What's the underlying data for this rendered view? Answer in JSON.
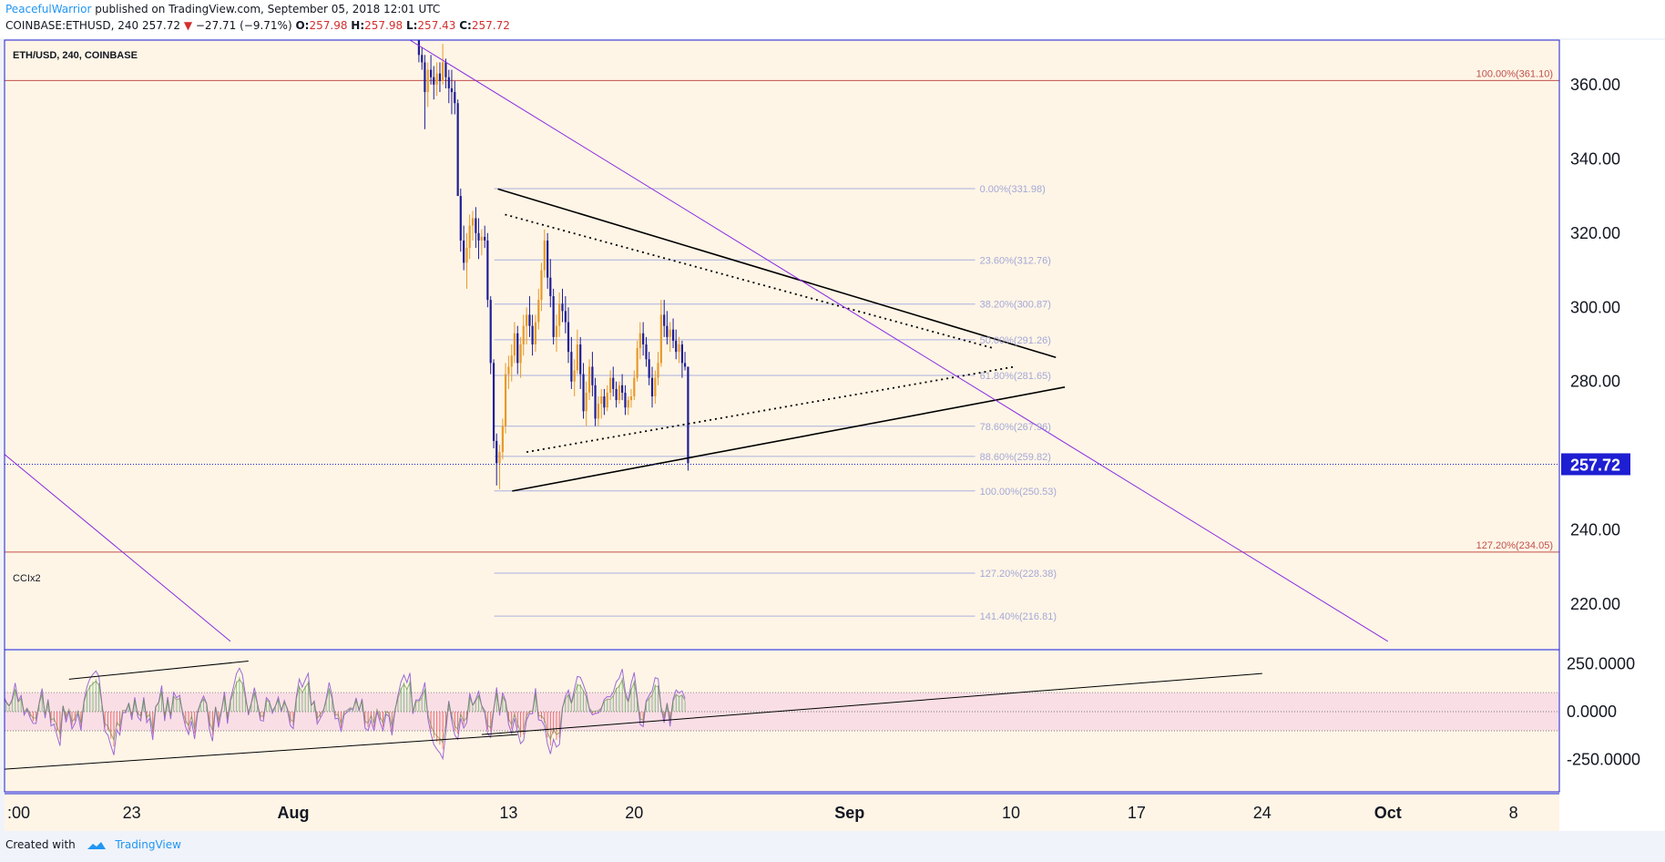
{
  "header": {
    "author": "PeacefulWarrior",
    "published": "published on TradingView.com, September 05, 2018 12:01 UTC",
    "symbol": "COINBASE:ETHUSD,",
    "timeframe": "240",
    "last": "257.72",
    "change": "−27.71 (−9.71%)",
    "o_label": "O:",
    "o": "257.98",
    "h_label": "H:",
    "h": "257.98",
    "l_label": "L:",
    "l": "257.43",
    "c_label": "C:",
    "c": "257.72"
  },
  "footer": {
    "created": "Created with",
    "brand": "TradingView"
  },
  "chart_data": {
    "type": "candlestick",
    "title": "ETH/USD, 240, COINBASE",
    "ylim": [
      208,
      372
    ],
    "y_ticks": [
      220,
      240,
      260,
      280,
      300,
      320,
      340,
      360
    ],
    "y_tick_labels": [
      "220.00",
      "240.00",
      "",
      "280.00",
      "300.00",
      "320.00",
      "340.00",
      "360.00"
    ],
    "x_ticks": [
      {
        "label": ":00",
        "day": -26,
        "bold": false
      },
      {
        "label": "23",
        "day": -9,
        "bold": false
      },
      {
        "label": "Aug",
        "day": 0,
        "bold": true
      },
      {
        "label": "13",
        "day": 12,
        "bold": false
      },
      {
        "label": "20",
        "day": 19,
        "bold": false
      },
      {
        "label": "Sep",
        "day": 31,
        "bold": true
      },
      {
        "label": "10",
        "day": 40,
        "bold": false
      },
      {
        "label": "17",
        "day": 47,
        "bold": false
      },
      {
        "label": "24",
        "day": 54,
        "bold": false
      },
      {
        "label": "Oct",
        "day": 61,
        "bold": true
      },
      {
        "label": "8",
        "day": 68,
        "bold": false
      }
    ],
    "last_price": {
      "value": 257.72,
      "label": "257.72",
      "color": "#1e1ed2"
    },
    "colors": {
      "up": "#e69a2a",
      "down": "#1e1e96",
      "background": "#fff5e6",
      "fib_line": "#aab0e0",
      "fib_text": "#a4a8d8",
      "major_fib": "#c0504d",
      "channel": "#8a2be2",
      "cci": "#9c6ad6",
      "cci_band": "#f5d0e4"
    },
    "fib_retracement": [
      {
        "label": "0.00%(331.98)",
        "value": 331.98
      },
      {
        "label": "23.60%(312.76)",
        "value": 312.76
      },
      {
        "label": "38.20%(300.87)",
        "value": 300.87
      },
      {
        "label": "50.00%(291.26)",
        "value": 291.26
      },
      {
        "label": "61.80%(281.65)",
        "value": 281.65
      },
      {
        "label": "78.60%(267.96)",
        "value": 267.96
      },
      {
        "label": "88.60%(259.82)",
        "value": 259.82
      },
      {
        "label": "100.00%(250.53)",
        "value": 250.53
      },
      {
        "label": "127.20%(228.38)",
        "value": 228.38
      },
      {
        "label": "141.40%(216.81)",
        "value": 216.81
      }
    ],
    "major_fib": [
      {
        "label": "100.00%(361.10)",
        "value": 361.1
      },
      {
        "label": "127.20%(234.05)",
        "value": 234.05
      }
    ],
    "trendlines": [
      {
        "from": [
          11.4,
          331.9
        ],
        "to": [
          42.5,
          286.5
        ],
        "style": "solid",
        "color": "#000000"
      },
      {
        "from": [
          12.2,
          250.5
        ],
        "to": [
          43.0,
          278.5
        ],
        "style": "solid",
        "color": "#000000"
      },
      {
        "from": [
          11.8,
          325.0
        ],
        "to": [
          39.0,
          289.0
        ],
        "style": "dotted",
        "color": "#000000"
      },
      {
        "from": [
          13.0,
          261.0
        ],
        "to": [
          40.2,
          284.0
        ],
        "style": "dotted",
        "color": "#000000"
      },
      {
        "from": [
          -27.5,
          306.0
        ],
        "to": [
          -3.5,
          210.0
        ],
        "style": "solid",
        "color": "#8a2be2"
      },
      {
        "from": [
          6.5,
          372.0
        ],
        "to": [
          61.0,
          210.0
        ],
        "style": "solid",
        "color": "#8a2be2"
      }
    ],
    "candles": [
      [
        7.0,
        372,
        372,
        366,
        368
      ],
      [
        7.17,
        368,
        370,
        364,
        366
      ],
      [
        7.33,
        366,
        368,
        348,
        358
      ],
      [
        7.5,
        358,
        366,
        354,
        364
      ],
      [
        7.67,
        364,
        368,
        360,
        362
      ],
      [
        7.83,
        362,
        365,
        356,
        360
      ],
      [
        8.0,
        360,
        366,
        357,
        363
      ],
      [
        8.17,
        363,
        366,
        358,
        361
      ],
      [
        8.33,
        361,
        371,
        360,
        366
      ],
      [
        8.5,
        366,
        367,
        359,
        362
      ],
      [
        8.67,
        362,
        364,
        355,
        359
      ],
      [
        8.83,
        359,
        364,
        352,
        358
      ],
      [
        9.0,
        358,
        361,
        352,
        355
      ],
      [
        9.17,
        355,
        356,
        330,
        330
      ],
      [
        9.33,
        330,
        332,
        315,
        318
      ],
      [
        9.5,
        318,
        322,
        310,
        312
      ],
      [
        9.67,
        312,
        320,
        305,
        316
      ],
      [
        9.83,
        316,
        325,
        313,
        322
      ],
      [
        10.0,
        322,
        326,
        318,
        324
      ],
      [
        10.17,
        324,
        327,
        316,
        320
      ],
      [
        10.33,
        320,
        324,
        313,
        318
      ],
      [
        10.5,
        318,
        321,
        314,
        319
      ],
      [
        10.67,
        319,
        322,
        316,
        318
      ],
      [
        10.83,
        318,
        320,
        300,
        302
      ],
      [
        11.0,
        302,
        303,
        282,
        285
      ],
      [
        11.17,
        285,
        286,
        262,
        264
      ],
      [
        11.33,
        264,
        266,
        252,
        258
      ],
      [
        11.5,
        258,
        263,
        251,
        261
      ],
      [
        11.67,
        261,
        270,
        259,
        268
      ],
      [
        11.83,
        268,
        285,
        266,
        282
      ],
      [
        12.0,
        282,
        287,
        278,
        284
      ],
      [
        12.17,
        284,
        290,
        280,
        287
      ],
      [
        12.33,
        287,
        296,
        285,
        293
      ],
      [
        12.5,
        293,
        295,
        282,
        285
      ],
      [
        12.67,
        285,
        292,
        281,
        290
      ],
      [
        12.83,
        290,
        298,
        287,
        295
      ],
      [
        13.0,
        295,
        300,
        290,
        298
      ],
      [
        13.17,
        298,
        303,
        292,
        295
      ],
      [
        13.33,
        295,
        298,
        287,
        290
      ],
      [
        13.5,
        290,
        298,
        288,
        296
      ],
      [
        13.67,
        296,
        305,
        294,
        302
      ],
      [
        13.83,
        302,
        312,
        299,
        310
      ],
      [
        14.0,
        310,
        321,
        308,
        318
      ],
      [
        14.17,
        318,
        320,
        305,
        308
      ],
      [
        14.33,
        308,
        313,
        300,
        303
      ],
      [
        14.5,
        303,
        305,
        290,
        292
      ],
      [
        14.67,
        292,
        298,
        288,
        295
      ],
      [
        14.83,
        295,
        304,
        292,
        301
      ],
      [
        15.0,
        301,
        305,
        296,
        299
      ],
      [
        15.17,
        299,
        303,
        293,
        296
      ],
      [
        15.33,
        296,
        300,
        285,
        288
      ],
      [
        15.5,
        288,
        292,
        278,
        280
      ],
      [
        15.67,
        280,
        286,
        276,
        283
      ],
      [
        15.83,
        283,
        294,
        282,
        290
      ],
      [
        16.0,
        290,
        292,
        278,
        282
      ],
      [
        16.17,
        282,
        285,
        270,
        272
      ],
      [
        16.33,
        272,
        280,
        268,
        277
      ],
      [
        16.5,
        277,
        286,
        275,
        284
      ],
      [
        16.67,
        284,
        288,
        276,
        279
      ],
      [
        16.83,
        279,
        281,
        268,
        270
      ],
      [
        17.0,
        270,
        276,
        268,
        274
      ],
      [
        17.17,
        274,
        278,
        270,
        276
      ],
      [
        17.33,
        276,
        278,
        271,
        273
      ],
      [
        17.5,
        273,
        279,
        272,
        277
      ],
      [
        17.67,
        277,
        283,
        275,
        281
      ],
      [
        17.83,
        281,
        284,
        276,
        278
      ],
      [
        18.0,
        278,
        280,
        273,
        275
      ],
      [
        18.17,
        275,
        280,
        274,
        279
      ],
      [
        18.33,
        279,
        282,
        275,
        277
      ],
      [
        18.5,
        277,
        279,
        271,
        273
      ],
      [
        18.67,
        273,
        276,
        271,
        275
      ],
      [
        18.83,
        275,
        278,
        273,
        276
      ],
      [
        19.0,
        276,
        283,
        275,
        281
      ],
      [
        19.17,
        281,
        291,
        280,
        289
      ],
      [
        19.33,
        289,
        296,
        286,
        293
      ],
      [
        19.5,
        293,
        296,
        287,
        290
      ],
      [
        19.67,
        290,
        292,
        284,
        286
      ],
      [
        19.83,
        286,
        288,
        279,
        281
      ],
      [
        20.0,
        281,
        284,
        273,
        276
      ],
      [
        20.17,
        276,
        283,
        274,
        281
      ],
      [
        20.33,
        281,
        288,
        279,
        285
      ],
      [
        20.5,
        285,
        302,
        284,
        298
      ],
      [
        20.67,
        298,
        302,
        292,
        295
      ],
      [
        20.83,
        295,
        299,
        290,
        292
      ],
      [
        21.0,
        292,
        296,
        288,
        294
      ],
      [
        21.17,
        294,
        297,
        289,
        291
      ],
      [
        21.33,
        291,
        294,
        286,
        288
      ],
      [
        21.5,
        288,
        292,
        285,
        290
      ],
      [
        21.67,
        290,
        291,
        281,
        285
      ],
      [
        21.83,
        285,
        288,
        283,
        284
      ],
      [
        22.0,
        284,
        284,
        256,
        258
      ]
    ],
    "cci": {
      "label": "CCIx2",
      "ylim": [
        -420,
        320
      ],
      "y_ticks": [
        250,
        0,
        -250
      ],
      "y_tick_labels": [
        "250.0000",
        "0.0000",
        "-250.0000"
      ],
      "band": [
        100,
        -100
      ],
      "trendlines": [
        {
          "from": [
            -17.5,
            -310
          ],
          "to": [
            12.5,
            -120
          ],
          "style": "solid"
        },
        {
          "from": [
            -12.5,
            170
          ],
          "to": [
            -2.5,
            265
          ],
          "style": "solid"
        },
        {
          "from": [
            10.5,
            -120
          ],
          "to": [
            54.0,
            200
          ],
          "style": "solid"
        }
      ]
    }
  }
}
